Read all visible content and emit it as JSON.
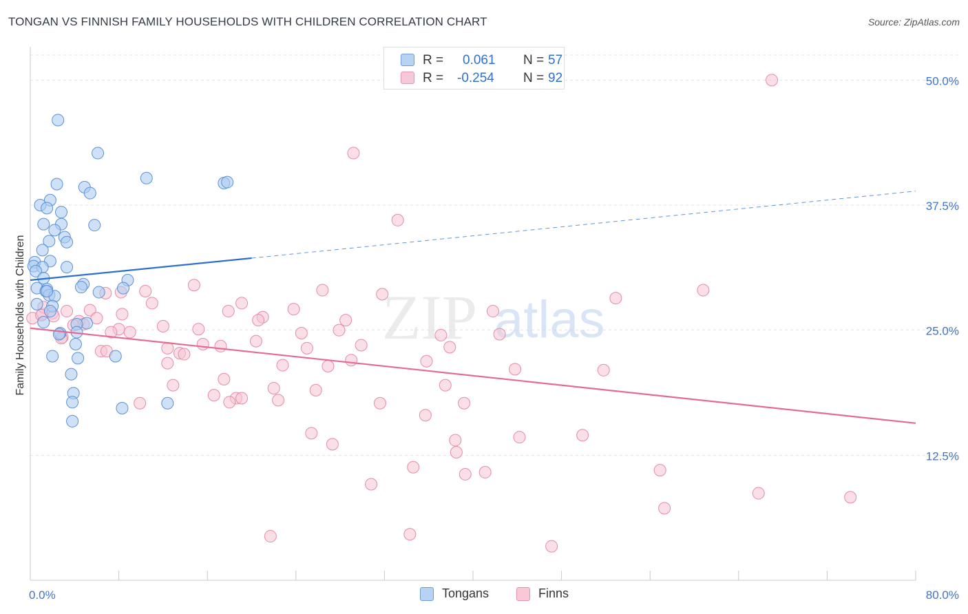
{
  "title": "TONGAN VS FINNISH FAMILY HOUSEHOLDS WITH CHILDREN CORRELATION CHART",
  "source": "Source: ZipAtlas.com",
  "legend": {
    "rows": [
      {
        "r_label": "R =",
        "r_value": "0.061",
        "n_label": "N =",
        "n_value": "57"
      },
      {
        "r_label": "R =",
        "r_value": "-0.254",
        "n_label": "N =",
        "n_value": "92"
      }
    ]
  },
  "bottom_legend": {
    "tongans": "Tongans",
    "finns": "Finns"
  },
  "colors": {
    "tongans_fill": "#aecdf2",
    "tongans_stroke": "#5b8fd6",
    "tongans_line": "#2a6fcf",
    "finns_fill": "#f7c4d4",
    "finns_stroke": "#e58aa8",
    "finns_line": "#e46a94",
    "tick_label": "#3f73c8",
    "grid": "#e3e3e3"
  },
  "chart_data": {
    "type": "scatter",
    "title": "TONGAN VS FINNISH FAMILY HOUSEHOLDS WITH CHILDREN CORRELATION CHART",
    "xlabel": "",
    "ylabel": "Family Households with Children",
    "xlim": [
      0,
      80
    ],
    "ylim": [
      0,
      52.5
    ],
    "x_tick_labels": [
      "0.0%",
      "80.0%"
    ],
    "y_ticks": [
      12.5,
      25.0,
      37.5,
      50.0
    ],
    "y_tick_labels": [
      "12.5%",
      "25.0%",
      "37.5%",
      "50.0%"
    ],
    "grid": true,
    "legend_position": "top-center",
    "watermark": "ZIPatlas",
    "series": [
      {
        "name": "Tongans",
        "r": 0.061,
        "n": 57,
        "trend": {
          "x": [
            0,
            20
          ],
          "y": [
            30.0,
            32.2
          ],
          "dashed_extension_to": [
            80,
            38.9
          ]
        },
        "points": [
          [
            2.5,
            46.0
          ],
          [
            6.1,
            42.7
          ],
          [
            10.5,
            40.2
          ],
          [
            17.5,
            39.7
          ],
          [
            17.8,
            39.8
          ],
          [
            2.4,
            39.6
          ],
          [
            4.9,
            39.3
          ],
          [
            5.4,
            38.7
          ],
          [
            1.8,
            38.0
          ],
          [
            0.9,
            37.5
          ],
          [
            1.5,
            37.2
          ],
          [
            2.8,
            36.8
          ],
          [
            1.2,
            35.6
          ],
          [
            2.8,
            35.6
          ],
          [
            5.8,
            35.5
          ],
          [
            2.2,
            35.0
          ],
          [
            3.1,
            34.3
          ],
          [
            3.3,
            33.8
          ],
          [
            1.7,
            33.9
          ],
          [
            1.1,
            33.0
          ],
          [
            0.4,
            31.8
          ],
          [
            1.8,
            31.9
          ],
          [
            0.3,
            31.4
          ],
          [
            1.1,
            31.3
          ],
          [
            3.3,
            31.3
          ],
          [
            0.5,
            30.9
          ],
          [
            1.2,
            30.2
          ],
          [
            8.8,
            30.0
          ],
          [
            4.8,
            29.6
          ],
          [
            4.6,
            29.3
          ],
          [
            8.4,
            29.2
          ],
          [
            0.6,
            29.2
          ],
          [
            1.5,
            29.1
          ],
          [
            1.4,
            28.9
          ],
          [
            6.2,
            28.8
          ],
          [
            1.7,
            28.5
          ],
          [
            2.2,
            28.4
          ],
          [
            0.6,
            27.6
          ],
          [
            2.0,
            27.4
          ],
          [
            1.8,
            26.9
          ],
          [
            1.2,
            25.8
          ],
          [
            5.1,
            25.7
          ],
          [
            2.7,
            24.7
          ],
          [
            2.6,
            24.6
          ],
          [
            4.2,
            25.6
          ],
          [
            4.2,
            24.8
          ],
          [
            4.1,
            23.6
          ],
          [
            2.0,
            22.4
          ],
          [
            7.7,
            22.4
          ],
          [
            4.3,
            22.2
          ],
          [
            3.7,
            20.6
          ],
          [
            3.9,
            18.7
          ],
          [
            3.8,
            17.8
          ],
          [
            8.3,
            17.2
          ],
          [
            12.4,
            17.7
          ],
          [
            3.8,
            15.9
          ],
          [
            1.5,
            28.9
          ]
        ]
      },
      {
        "name": "Finns",
        "r": -0.254,
        "n": 92,
        "trend": {
          "x": [
            0,
            80
          ],
          "y": [
            25.2,
            15.7
          ]
        },
        "points": [
          [
            67.0,
            50.0
          ],
          [
            29.2,
            42.7
          ],
          [
            33.2,
            36.0
          ],
          [
            14.8,
            29.5
          ],
          [
            26.4,
            29.0
          ],
          [
            60.8,
            29.0
          ],
          [
            31.8,
            28.6
          ],
          [
            52.9,
            28.2
          ],
          [
            10.4,
            28.9
          ],
          [
            8.2,
            28.8
          ],
          [
            6.8,
            28.7
          ],
          [
            11.0,
            27.7
          ],
          [
            19.1,
            27.7
          ],
          [
            8.3,
            26.6
          ],
          [
            17.9,
            26.9
          ],
          [
            23.8,
            27.1
          ],
          [
            41.8,
            26.9
          ],
          [
            3.3,
            26.9
          ],
          [
            5.4,
            27.0
          ],
          [
            1.1,
            26.6
          ],
          [
            1.2,
            27.3
          ],
          [
            2.0,
            26.7
          ],
          [
            0.2,
            26.2
          ],
          [
            2.1,
            26.4
          ],
          [
            6.0,
            26.2
          ],
          [
            21.0,
            26.3
          ],
          [
            28.5,
            26.0
          ],
          [
            20.6,
            26.0
          ],
          [
            4.4,
            25.9
          ],
          [
            4.8,
            25.6
          ],
          [
            3.9,
            25.5
          ],
          [
            12.0,
            25.4
          ],
          [
            8.0,
            25.1
          ],
          [
            15.2,
            25.1
          ],
          [
            27.9,
            25.0
          ],
          [
            7.3,
            24.8
          ],
          [
            9.0,
            24.8
          ],
          [
            24.5,
            24.7
          ],
          [
            37.1,
            24.5
          ],
          [
            42.4,
            24.6
          ],
          [
            2.9,
            24.3
          ],
          [
            20.4,
            23.9
          ],
          [
            15.6,
            23.6
          ],
          [
            17.2,
            23.4
          ],
          [
            29.9,
            23.5
          ],
          [
            37.9,
            23.3
          ],
          [
            12.4,
            23.2
          ],
          [
            25.0,
            23.2
          ],
          [
            6.4,
            22.9
          ],
          [
            13.5,
            22.7
          ],
          [
            13.9,
            22.6
          ],
          [
            29.0,
            22.0
          ],
          [
            12.4,
            21.7
          ],
          [
            22.8,
            21.5
          ],
          [
            35.8,
            21.9
          ],
          [
            26.9,
            21.4
          ],
          [
            43.8,
            21.1
          ],
          [
            51.8,
            21.0
          ],
          [
            17.5,
            20.1
          ],
          [
            37.5,
            19.5
          ],
          [
            12.9,
            19.5
          ],
          [
            22.0,
            19.2
          ],
          [
            25.8,
            19.0
          ],
          [
            16.6,
            18.5
          ],
          [
            18.6,
            18.2
          ],
          [
            19.1,
            18.2
          ],
          [
            18.0,
            17.8
          ],
          [
            22.4,
            18.0
          ],
          [
            9.9,
            17.7
          ],
          [
            31.6,
            17.7
          ],
          [
            39.2,
            17.7
          ],
          [
            35.7,
            16.5
          ],
          [
            25.4,
            14.7
          ],
          [
            49.9,
            14.5
          ],
          [
            44.2,
            14.3
          ],
          [
            38.4,
            14.0
          ],
          [
            27.3,
            13.6
          ],
          [
            38.5,
            12.8
          ],
          [
            34.6,
            11.3
          ],
          [
            56.9,
            11.0
          ],
          [
            41.1,
            10.8
          ],
          [
            39.3,
            10.6
          ],
          [
            30.8,
            9.6
          ],
          [
            65.8,
            8.7
          ],
          [
            74.1,
            8.3
          ],
          [
            57.3,
            7.2
          ],
          [
            21.7,
            4.4
          ],
          [
            34.3,
            4.6
          ],
          [
            47.1,
            3.4
          ],
          [
            1.0,
            26.5
          ],
          [
            2.8,
            24.2
          ],
          [
            6.9,
            22.9
          ]
        ]
      }
    ]
  }
}
